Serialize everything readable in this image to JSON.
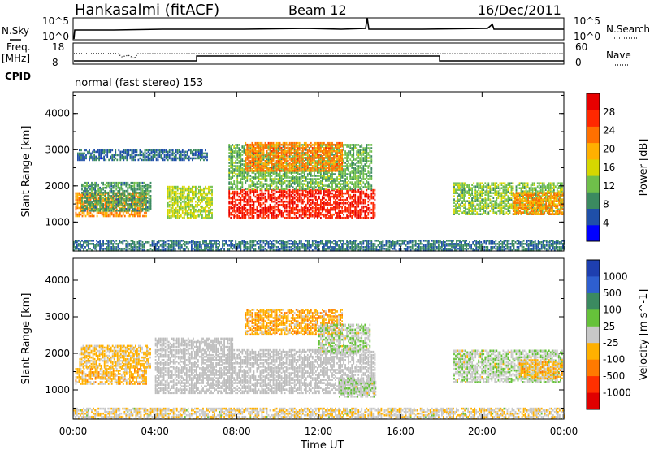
{
  "header": {
    "title": "Hankasalmi (fitACF)",
    "beam": "Beam 12",
    "date": "16/Dec/2011"
  },
  "top_panels": {
    "nsky_label": "N.Sky",
    "nsearch_label": "N.Search",
    "noise_ticks_left": [
      "10^5",
      "10^0"
    ],
    "noise_ticks_right": [
      "10^5",
      "10^0"
    ],
    "freq_label_1": "Freq.",
    "freq_label_2": "[MHz]",
    "freq_ticks": [
      "18",
      "8"
    ],
    "nave_label": "Nave",
    "nave_ticks": [
      "60",
      "0"
    ],
    "cpid_label": "CPID",
    "cpid_text": "normal (fast stereo) 153"
  },
  "colors": {
    "power_scale": [
      "#0000ff",
      "#1f4fa8",
      "#3b8a60",
      "#6fbf4a",
      "#d6d700",
      "#ffb000",
      "#ff7000",
      "#ff2800",
      "#e80000"
    ],
    "velocity_scale": [
      "#1e3fb0",
      "#2e5fd0",
      "#3b8a60",
      "#66c23a",
      "#c8c8c8",
      "#ffb000",
      "#ff7a00",
      "#ff3000",
      "#e00000"
    ],
    "ground_scatter": "#bdbdbd"
  },
  "chart_data": [
    {
      "type": "heatmap",
      "panel": "power",
      "ylabel": "Slant Range [km]",
      "xlabel": "Time UT",
      "x_ticks": [
        "00:00",
        "04:00",
        "08:00",
        "12:00",
        "16:00",
        "20:00",
        "00:00"
      ],
      "y_ticks": [
        "1000",
        "2000",
        "3000",
        "4000"
      ],
      "xlim": [
        0,
        24
      ],
      "ylim": [
        200,
        4600
      ],
      "colorbar": {
        "label": "Power [dB]",
        "ticks": [
          "28",
          "24",
          "20",
          "16",
          "12",
          "8",
          "4"
        ],
        "range": [
          0,
          30
        ]
      },
      "blobs": [
        {
          "t0": 0.1,
          "t1": 3.6,
          "r0": 1150,
          "r1": 1800,
          "value": 20
        },
        {
          "t0": 0.4,
          "t1": 3.8,
          "r0": 1300,
          "r1": 2100,
          "value": 9
        },
        {
          "t0": 4.6,
          "t1": 6.8,
          "r0": 1100,
          "r1": 2000,
          "value": 14
        },
        {
          "t0": 7.6,
          "t1": 14.8,
          "r0": 1100,
          "r1": 1900,
          "value": 26
        },
        {
          "t0": 7.6,
          "t1": 14.6,
          "r0": 1900,
          "r1": 3150,
          "value": 11
        },
        {
          "t0": 8.4,
          "t1": 13.2,
          "r0": 2400,
          "r1": 3200,
          "value": 21
        },
        {
          "t0": 0.2,
          "t1": 6.6,
          "r0": 2700,
          "r1": 3000,
          "value": 6
        },
        {
          "t0": 18.6,
          "t1": 23.9,
          "r0": 1200,
          "r1": 2100,
          "value": 12
        },
        {
          "t0": 21.5,
          "t1": 23.9,
          "r0": 1200,
          "r1": 1800,
          "value": 20
        },
        {
          "t0": 0.0,
          "t1": 24.0,
          "r0": 200,
          "r1": 500,
          "value": 7
        }
      ]
    },
    {
      "type": "heatmap",
      "panel": "velocity",
      "ylabel": "Slant Range [km]",
      "xlabel": "Time UT",
      "x_ticks": [
        "00:00",
        "04:00",
        "08:00",
        "12:00",
        "16:00",
        "20:00",
        "00:00"
      ],
      "y_ticks": [
        "1000",
        "2000",
        "3000",
        "4000"
      ],
      "xlim": [
        0,
        24
      ],
      "ylim": [
        200,
        4600
      ],
      "colorbar": {
        "label": "Velocity [m s^-1]",
        "ticks": [
          "1000",
          "500",
          "100",
          "25",
          "-25",
          "-100",
          "-500",
          "-1000"
        ],
        "range": [
          -1000,
          1000
        ]
      },
      "blobs": [
        {
          "t0": 0.1,
          "t1": 3.6,
          "r0": 1150,
          "r1": 1600,
          "value": -200
        },
        {
          "t0": 0.3,
          "t1": 3.8,
          "r0": 1600,
          "r1": 2200,
          "value": -150
        },
        {
          "t0": 4.0,
          "t1": 7.8,
          "r0": 900,
          "r1": 2400,
          "value": 0
        },
        {
          "t0": 7.6,
          "t1": 14.8,
          "r0": 900,
          "r1": 2100,
          "value": 0
        },
        {
          "t0": 8.4,
          "t1": 13.2,
          "r0": 2500,
          "r1": 3200,
          "value": -250
        },
        {
          "t0": 12.0,
          "t1": 14.5,
          "r0": 2000,
          "r1": 2800,
          "value": 60
        },
        {
          "t0": 13.0,
          "t1": 14.8,
          "r0": 800,
          "r1": 1300,
          "value": 60
        },
        {
          "t0": 18.6,
          "t1": 23.9,
          "r0": 1200,
          "r1": 2100,
          "value": 60
        },
        {
          "t0": 21.8,
          "t1": 23.9,
          "r0": 1300,
          "r1": 1800,
          "value": -200
        },
        {
          "t0": 0.0,
          "t1": 24.0,
          "r0": 200,
          "r1": 500,
          "value": -60
        }
      ]
    }
  ]
}
